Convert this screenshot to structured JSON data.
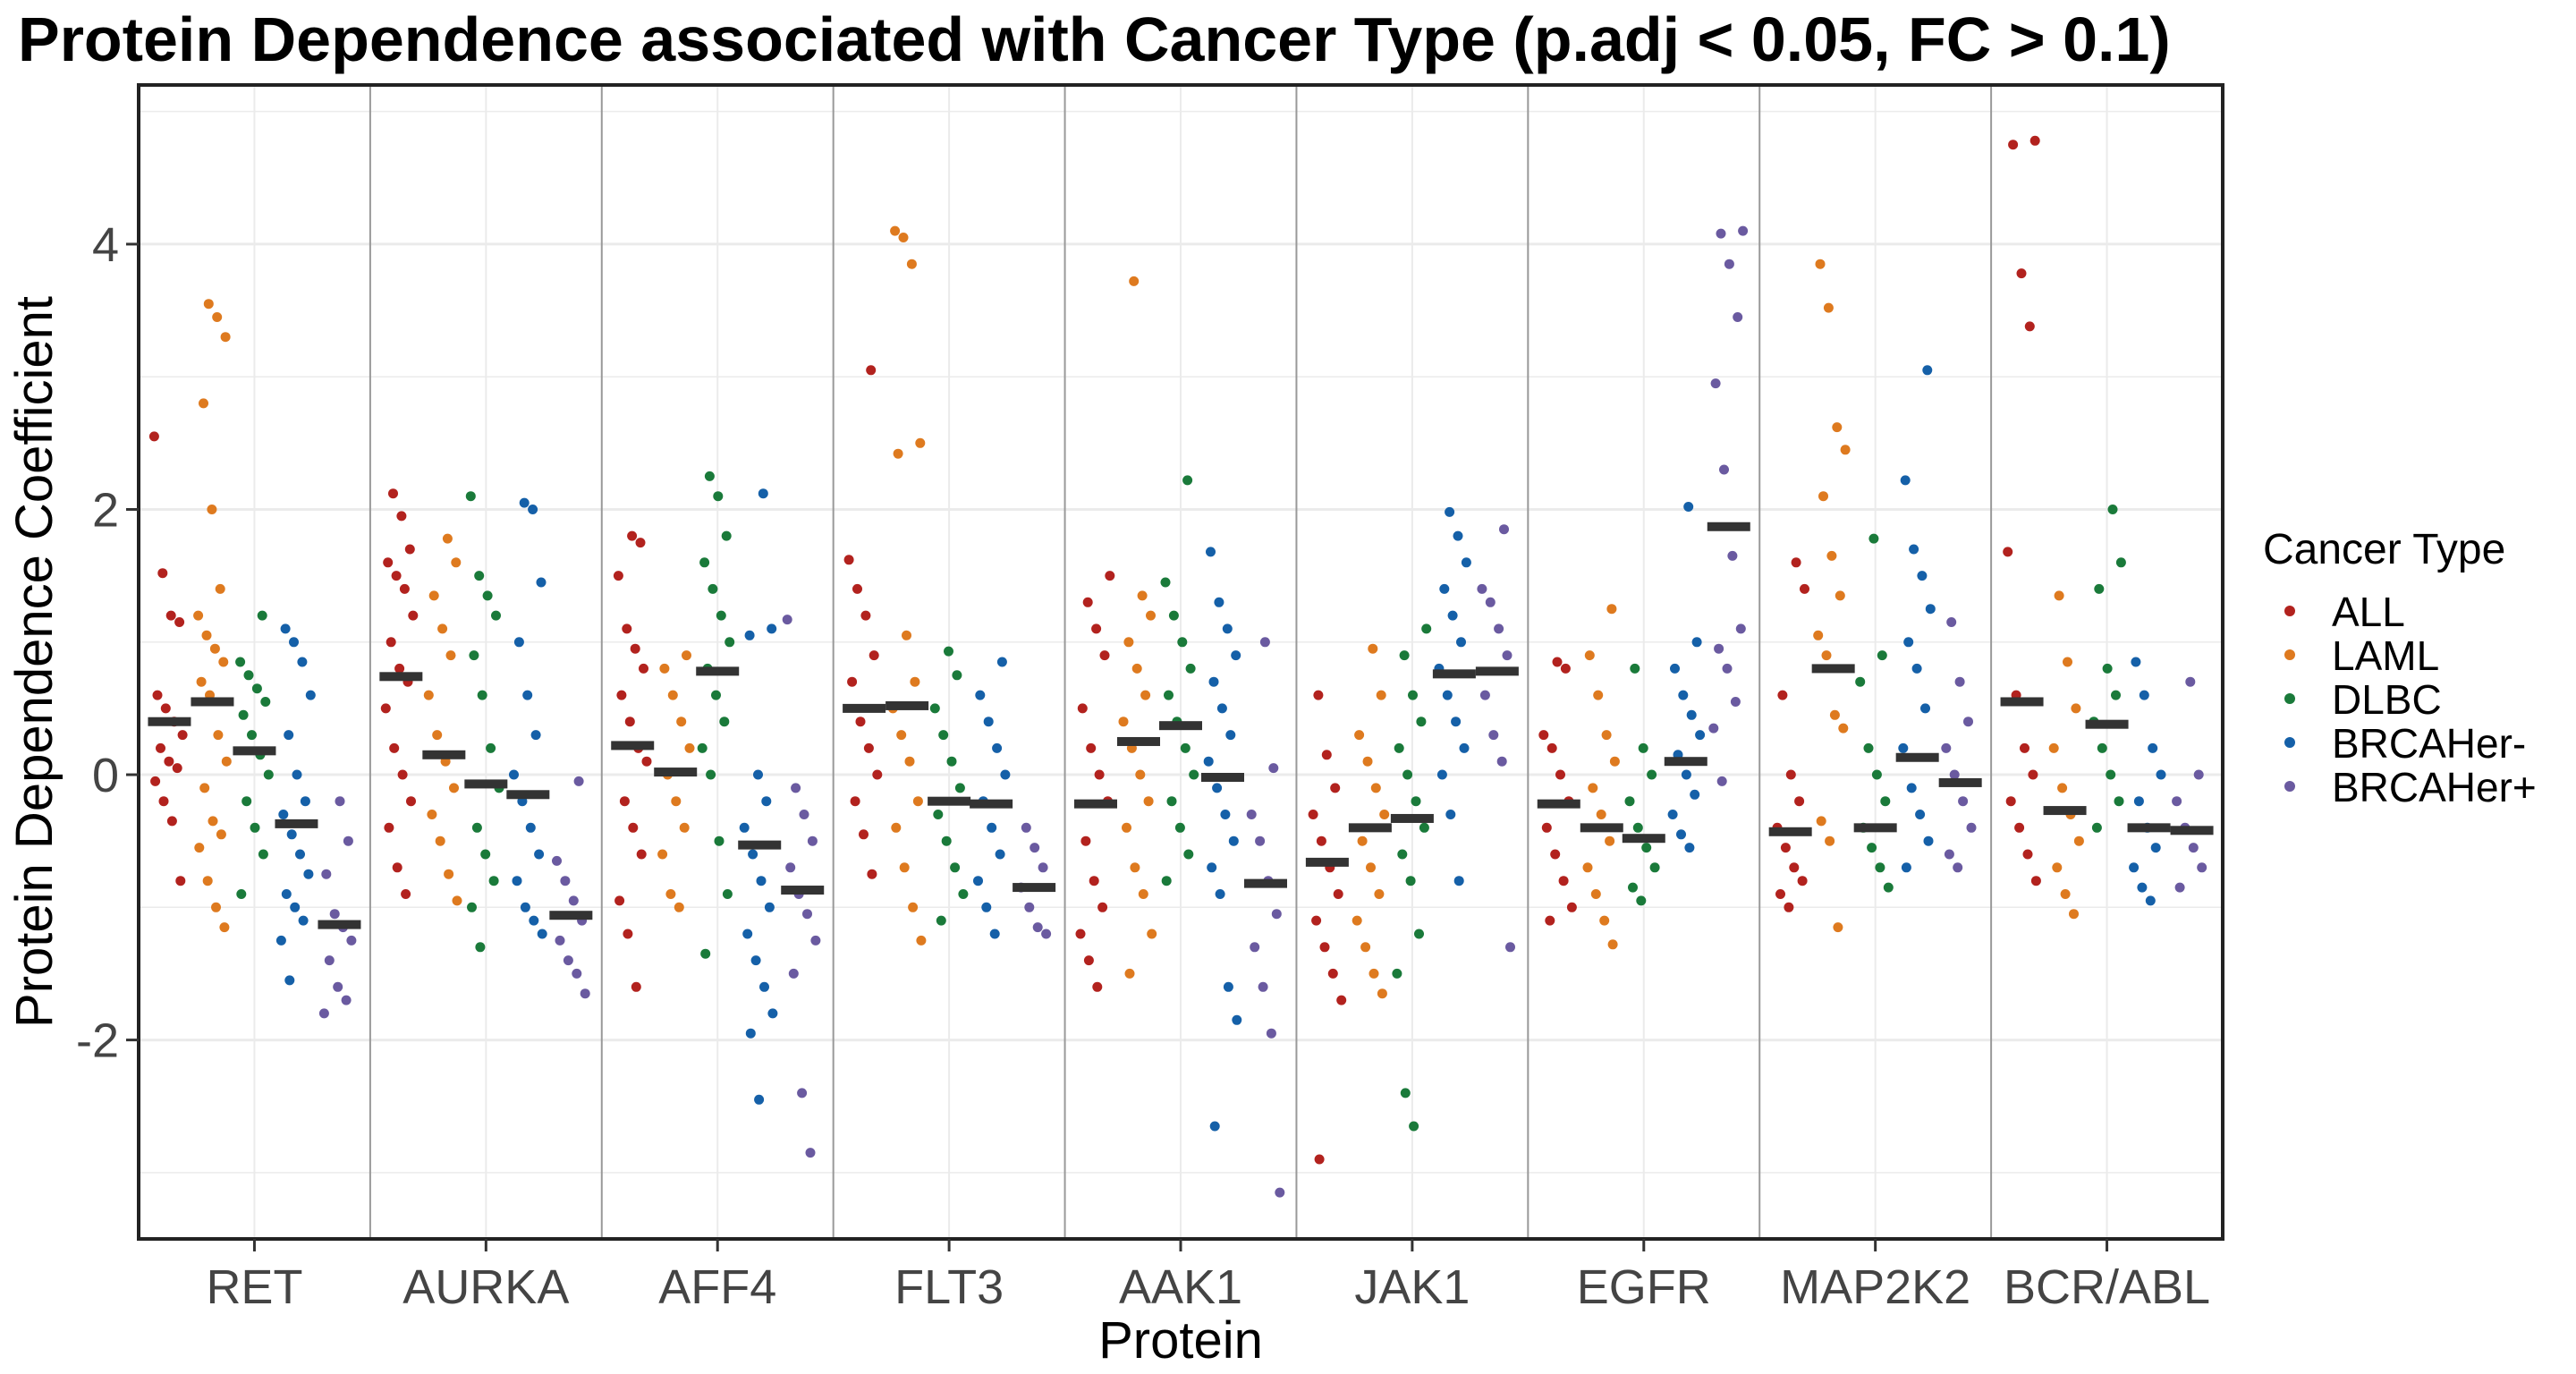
{
  "chart_data": {
    "type": "scatter",
    "title": "Protein Dependence associated with Cancer Type (p.adj < 0.05, FC > 0.1)",
    "xlabel": "Protein",
    "ylabel": "Protein Dependence Coefficient",
    "ylim": [
      -3.5,
      5.2
    ],
    "yticks": [
      -2,
      0,
      2,
      4
    ],
    "ytick_labels": [
      "-2",
      "0",
      "2",
      "4"
    ],
    "grid": true,
    "legend_position": "right",
    "legend_title": "Cancer Type",
    "series_order": [
      "ALL",
      "LAML",
      "DLBC",
      "BRCAHer-",
      "BRCAHer+"
    ],
    "colors": {
      "ALL": "#B2221E",
      "LAML": "#DE7A1F",
      "DLBC": "#1A7A3A",
      "BRCAHer-": "#1560A8",
      "BRCAHer+": "#6A5AA0",
      "median": "#333333",
      "grid": "#EBEBEB",
      "divider": "#999999"
    },
    "categories": [
      "RET",
      "AURKA",
      "AFF4",
      "FLT3",
      "AAK1",
      "JAK1",
      "EGFR",
      "MAP2K2",
      "BCR/ABL"
    ],
    "medians": {
      "RET": [
        0.4,
        0.55,
        0.18,
        -0.37,
        -1.13
      ],
      "AURKA": [
        0.74,
        0.15,
        -0.07,
        -0.15,
        -1.06
      ],
      "AFF4": [
        0.22,
        0.02,
        0.78,
        -0.53,
        -0.87
      ],
      "FLT3": [
        0.5,
        0.52,
        -0.2,
        -0.22,
        -0.85
      ],
      "AAK1": [
        -0.22,
        0.25,
        0.37,
        -0.02,
        -0.82
      ],
      "JAK1": [
        -0.66,
        -0.4,
        -0.33,
        0.76,
        0.78
      ],
      "EGFR": [
        -0.22,
        -0.4,
        -0.48,
        0.1,
        1.87
      ],
      "MAP2K2": [
        -0.43,
        0.8,
        -0.4,
        0.13,
        -0.06
      ],
      "BCR/ABL": [
        0.55,
        -0.27,
        0.38,
        -0.4,
        -0.42
      ]
    },
    "points": {
      "RET": [
        [
          2.55,
          1.52,
          1.2,
          1.15,
          0.6,
          0.5,
          0.4,
          0.3,
          0.2,
          0.1,
          0.05,
          -0.05,
          -0.2,
          -0.35,
          -0.8
        ],
        [
          3.55,
          3.45,
          3.3,
          2.8,
          2.0,
          1.4,
          1.2,
          1.05,
          0.95,
          0.85,
          0.7,
          0.6,
          0.3,
          0.1,
          -0.1,
          -0.35,
          -0.45,
          -0.55,
          -0.8,
          -1.0,
          -1.15
        ],
        [
          1.2,
          0.85,
          0.75,
          0.65,
          0.55,
          0.45,
          0.3,
          0.15,
          0.0,
          -0.2,
          -0.4,
          -0.6,
          -0.9
        ],
        [
          1.1,
          1.0,
          0.85,
          0.6,
          0.3,
          0.0,
          -0.2,
          -0.3,
          -0.45,
          -0.6,
          -0.75,
          -0.9,
          -1.0,
          -1.1,
          -1.25,
          -1.55
        ],
        [
          -0.2,
          -0.5,
          -0.75,
          -1.05,
          -1.15,
          -1.25,
          -1.4,
          -1.6,
          -1.7,
          -1.8
        ]
      ],
      "AURKA": [
        [
          2.12,
          1.95,
          1.7,
          1.6,
          1.5,
          1.4,
          1.2,
          1.0,
          0.8,
          0.7,
          0.5,
          0.2,
          0.0,
          -0.2,
          -0.4,
          -0.7,
          -0.9
        ],
        [
          1.78,
          1.6,
          1.35,
          1.1,
          0.9,
          0.6,
          0.3,
          0.1,
          -0.1,
          -0.3,
          -0.5,
          -0.75,
          -0.95
        ],
        [
          2.1,
          1.5,
          1.35,
          1.2,
          0.9,
          0.6,
          0.2,
          -0.1,
          -0.4,
          -0.6,
          -0.8,
          -1.0,
          -1.3
        ],
        [
          2.05,
          2.0,
          1.45,
          1.0,
          0.6,
          0.3,
          0.0,
          -0.2,
          -0.4,
          -0.6,
          -0.8,
          -1.0,
          -1.1,
          -1.2
        ],
        [
          -0.05,
          -0.65,
          -0.8,
          -0.95,
          -1.1,
          -1.25,
          -1.4,
          -1.5,
          -1.65
        ]
      ],
      "AFF4": [
        [
          1.8,
          1.75,
          1.5,
          1.1,
          0.95,
          0.8,
          0.6,
          0.4,
          0.2,
          0.1,
          -0.2,
          -0.4,
          -0.6,
          -0.95,
          -1.2,
          -1.6
        ],
        [
          0.9,
          0.8,
          0.6,
          0.4,
          0.2,
          0.0,
          -0.2,
          -0.4,
          -0.6,
          -0.9,
          -1.0
        ],
        [
          2.25,
          2.1,
          1.8,
          1.6,
          1.4,
          1.2,
          1.0,
          0.8,
          0.6,
          0.4,
          0.2,
          0.0,
          -0.5,
          -0.9,
          -1.35
        ],
        [
          2.12,
          1.1,
          1.05,
          0.0,
          -0.2,
          -0.4,
          -0.6,
          -0.8,
          -1.0,
          -1.2,
          -1.4,
          -1.6,
          -1.8,
          -1.95,
          -2.45
        ],
        [
          1.17,
          -0.1,
          -0.3,
          -0.5,
          -0.7,
          -0.9,
          -1.05,
          -1.25,
          -1.5,
          -2.4,
          -2.85
        ]
      ],
      "FLT3": [
        [
          3.05,
          1.62,
          1.4,
          1.2,
          0.9,
          0.7,
          0.4,
          0.2,
          0.0,
          -0.2,
          -0.45,
          -0.75
        ],
        [
          4.1,
          4.05,
          3.85,
          2.5,
          2.42,
          1.05,
          0.7,
          0.5,
          0.3,
          0.1,
          -0.2,
          -0.4,
          -0.7,
          -1.0,
          -1.25
        ],
        [
          0.93,
          0.75,
          0.5,
          0.3,
          0.1,
          -0.1,
          -0.3,
          -0.5,
          -0.7,
          -0.9,
          -1.1
        ],
        [
          0.85,
          0.6,
          0.4,
          0.2,
          0.0,
          -0.2,
          -0.4,
          -0.6,
          -0.8,
          -1.0,
          -1.2
        ],
        [
          -0.4,
          -0.55,
          -0.7,
          -0.85,
          -1.0,
          -1.15,
          -1.2
        ]
      ],
      "AAK1": [
        [
          1.5,
          1.3,
          1.1,
          0.9,
          0.5,
          0.2,
          0.0,
          -0.2,
          -0.5,
          -0.8,
          -1.0,
          -1.2,
          -1.4,
          -1.6
        ],
        [
          3.72,
          1.35,
          1.2,
          1.0,
          0.8,
          0.6,
          0.4,
          0.2,
          0.0,
          -0.2,
          -0.4,
          -0.7,
          -0.9,
          -1.2,
          -1.5
        ],
        [
          2.22,
          1.45,
          1.2,
          1.0,
          0.8,
          0.6,
          0.4,
          0.2,
          0.0,
          -0.2,
          -0.4,
          -0.6,
          -0.8
        ],
        [
          1.68,
          1.3,
          1.1,
          0.9,
          0.7,
          0.5,
          0.3,
          0.1,
          -0.1,
          -0.3,
          -0.5,
          -0.7,
          -0.9,
          -1.6,
          -1.85,
          -2.65
        ],
        [
          1.0,
          0.05,
          -0.3,
          -0.5,
          -0.8,
          -1.05,
          -1.3,
          -1.6,
          -1.95,
          -3.15
        ]
      ],
      "JAK1": [
        [
          0.6,
          0.15,
          -0.1,
          -0.3,
          -0.5,
          -0.7,
          -0.9,
          -1.1,
          -1.3,
          -1.5,
          -1.7,
          -2.9
        ],
        [
          0.95,
          0.6,
          0.3,
          0.1,
          -0.1,
          -0.3,
          -0.5,
          -0.7,
          -0.9,
          -1.1,
          -1.3,
          -1.5,
          -1.65
        ],
        [
          1.1,
          0.9,
          0.6,
          0.4,
          0.2,
          0.0,
          -0.2,
          -0.4,
          -0.6,
          -0.8,
          -1.2,
          -1.5,
          -2.4,
          -2.65
        ],
        [
          1.98,
          1.8,
          1.6,
          1.4,
          1.2,
          1.0,
          0.8,
          0.6,
          0.4,
          0.2,
          0.0,
          -0.3,
          -0.8
        ],
        [
          1.85,
          1.4,
          1.3,
          1.1,
          0.9,
          0.6,
          0.3,
          0.1,
          -1.3
        ]
      ],
      "EGFR": [
        [
          0.85,
          0.8,
          0.3,
          0.2,
          0.0,
          -0.2,
          -0.4,
          -0.6,
          -0.8,
          -1.0,
          -1.1
        ],
        [
          1.25,
          0.9,
          0.6,
          0.3,
          0.1,
          -0.1,
          -0.3,
          -0.5,
          -0.7,
          -0.9,
          -1.1,
          -1.28
        ],
        [
          0.8,
          0.2,
          0.0,
          -0.2,
          -0.4,
          -0.55,
          -0.7,
          -0.85,
          -0.95
        ],
        [
          2.02,
          1.0,
          0.8,
          0.6,
          0.45,
          0.3,
          0.15,
          0.0,
          -0.15,
          -0.3,
          -0.45,
          -0.55
        ],
        [
          4.1,
          4.08,
          3.85,
          3.45,
          2.95,
          2.3,
          1.65,
          1.1,
          0.95,
          0.8,
          0.55,
          0.35,
          -0.05
        ]
      ],
      "MAP2K2": [
        [
          1.6,
          1.4,
          0.6,
          0.0,
          -0.2,
          -0.4,
          -0.55,
          -0.7,
          -0.8,
          -0.9,
          -1.0
        ],
        [
          3.85,
          3.52,
          2.62,
          2.45,
          2.1,
          1.65,
          1.35,
          1.05,
          0.9,
          0.45,
          0.35,
          -0.35,
          -0.5,
          -1.15
        ],
        [
          1.78,
          0.9,
          0.7,
          0.2,
          0.0,
          -0.2,
          -0.4,
          -0.55,
          -0.7,
          -0.85
        ],
        [
          3.05,
          2.22,
          1.7,
          1.5,
          1.25,
          1.0,
          0.8,
          0.5,
          0.2,
          -0.1,
          -0.3,
          -0.5,
          -0.7
        ],
        [
          1.15,
          0.7,
          0.4,
          0.2,
          0.0,
          -0.2,
          -0.4,
          -0.6,
          -0.7
        ]
      ],
      "BCR/ABL": [
        [
          4.78,
          4.75,
          3.78,
          3.38,
          1.68,
          0.6,
          0.2,
          0.0,
          -0.2,
          -0.4,
          -0.6,
          -0.8
        ],
        [
          1.35,
          0.85,
          0.5,
          0.2,
          -0.1,
          -0.3,
          -0.5,
          -0.7,
          -0.9,
          -1.05
        ],
        [
          2.0,
          1.6,
          1.4,
          0.8,
          0.6,
          0.4,
          0.2,
          0.0,
          -0.2,
          -0.4
        ],
        [
          0.85,
          0.6,
          0.2,
          0.0,
          -0.2,
          -0.4,
          -0.55,
          -0.7,
          -0.85,
          -0.95
        ],
        [
          0.7,
          0.0,
          -0.2,
          -0.4,
          -0.55,
          -0.7,
          -0.85
        ]
      ]
    }
  }
}
